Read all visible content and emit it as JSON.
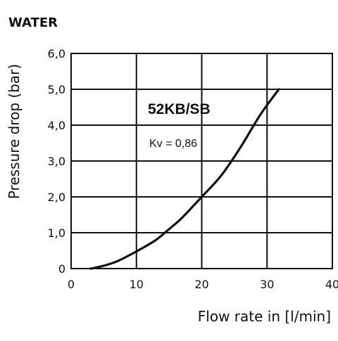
{
  "page": {
    "section_title": "WATER"
  },
  "chart_data": {
    "type": "line",
    "title": "WATER",
    "xlabel": "Flow rate in [l/min]",
    "ylabel": "Pressure drop (bar)",
    "xlim": [
      0,
      40
    ],
    "ylim": [
      0,
      6
    ],
    "x_ticks": [
      "0",
      "10",
      "20",
      "30",
      "40"
    ],
    "y_ticks": [
      "0",
      "1,0",
      "2,0",
      "3,0",
      "4,0",
      "5,0",
      "6,0"
    ],
    "grid": true,
    "legend": "none",
    "colors": {
      "line": "#111111",
      "grid": "#111111",
      "background": "#ffffff"
    },
    "annotations": {
      "series_name": "52KB/SB",
      "kv_text": "Kv = 0,86"
    },
    "series": [
      {
        "name": "52KB/SB",
        "x": [
          3.0,
          5.0,
          7.0,
          9.0,
          11.0,
          13.0,
          15.0,
          17.0,
          20.0,
          23.0,
          26.0,
          29.0,
          31.8
        ],
        "y": [
          0.0,
          0.08,
          0.2,
          0.38,
          0.58,
          0.8,
          1.1,
          1.42,
          2.0,
          2.6,
          3.4,
          4.3,
          5.0
        ]
      }
    ]
  }
}
